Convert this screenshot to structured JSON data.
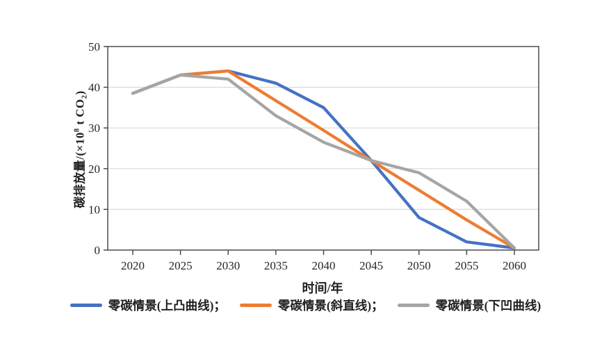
{
  "chart_data": {
    "type": "line",
    "title": "",
    "xlabel": "时间/年",
    "ylabel": "碳排放量/(×10⁸ t CO₂)",
    "ylabel_parts": {
      "prefix": "碳排放量/(×10",
      "sup": "8",
      "mid": " t CO",
      "sub": "2",
      "suffix": ")"
    },
    "x": [
      2020,
      2025,
      2030,
      2035,
      2040,
      2045,
      2050,
      2055,
      2060
    ],
    "xlim": [
      2020,
      2060
    ],
    "ylim": [
      0,
      50
    ],
    "y_ticks": [
      0,
      10,
      20,
      30,
      40,
      50
    ],
    "grid": "horizontal",
    "legend_position": "bottom",
    "axis_color": "#3f3f3f",
    "gridline_color": "#d9d9d9",
    "series": [
      {
        "name": "零碳情景(上凸曲线)；",
        "color": "#4472C4",
        "values": [
          38.5,
          43,
          44,
          41,
          35,
          22,
          8,
          2,
          0.5
        ]
      },
      {
        "name": "零碳情景(斜直线)；",
        "color": "#ED7D31",
        "values": [
          38.5,
          43,
          44,
          36.7,
          29.4,
          22,
          14.7,
          7.4,
          0.5
        ]
      },
      {
        "name": "零碳情景(下凹曲线)",
        "color": "#A5A5A5",
        "values": [
          38.5,
          43,
          42,
          33,
          26.5,
          22,
          19,
          12,
          0.5
        ]
      }
    ]
  }
}
